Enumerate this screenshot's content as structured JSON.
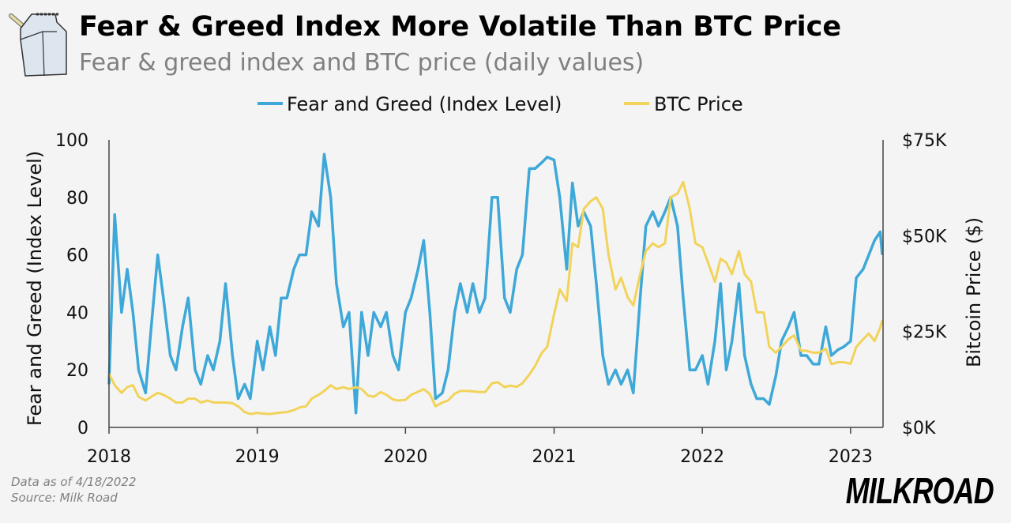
{
  "header": {
    "title": "Fear & Greed Index More Volatile Than BTC Price",
    "subtitle": "Fear & greed index and BTC price (daily values)",
    "logo_icon": "milk-carton-icon"
  },
  "footer": {
    "note": "Data as of 4/18/2022",
    "source": "Source: Milk Road",
    "brand_logo": "MILKROAD"
  },
  "colors": {
    "fear_greed": "#3ea8d8",
    "btc": "#f2d35a",
    "axis": "#444444",
    "background": "#f4f4f4"
  },
  "chart_data": {
    "type": "line",
    "legend_placement": "top-center",
    "grid": false,
    "xlabel": "",
    "ylabel": "Fear and Greed (Index Level)",
    "y2label": "Bitcoin Price ($)",
    "ylim": [
      0,
      100
    ],
    "y2lim": [
      0,
      75
    ],
    "y2_unit": "$K",
    "yticks": [
      "0",
      "20",
      "40",
      "60",
      "80",
      "100"
    ],
    "y2ticks": [
      "$0K",
      "$25K",
      "$50K",
      "$75K"
    ],
    "xticks": [
      "2018",
      "2019",
      "2020",
      "2021",
      "2022",
      "2023"
    ],
    "xlim": [
      "2018-01-01",
      "2023-03-22"
    ],
    "dates": [
      "2018-01-01",
      "2018-01-15",
      "2018-02-01",
      "2018-02-15",
      "2018-03-01",
      "2018-03-15",
      "2018-04-01",
      "2018-04-15",
      "2018-05-01",
      "2018-05-15",
      "2018-06-01",
      "2018-06-15",
      "2018-07-01",
      "2018-07-15",
      "2018-08-01",
      "2018-08-15",
      "2018-09-01",
      "2018-09-15",
      "2018-10-01",
      "2018-10-15",
      "2018-11-01",
      "2018-11-15",
      "2018-12-01",
      "2018-12-15",
      "2019-01-01",
      "2019-01-15",
      "2019-02-01",
      "2019-02-15",
      "2019-03-01",
      "2019-03-15",
      "2019-04-01",
      "2019-04-15",
      "2019-05-01",
      "2019-05-15",
      "2019-06-01",
      "2019-06-15",
      "2019-07-01",
      "2019-07-15",
      "2019-08-01",
      "2019-08-15",
      "2019-09-01",
      "2019-09-15",
      "2019-10-01",
      "2019-10-15",
      "2019-11-01",
      "2019-11-15",
      "2019-12-01",
      "2019-12-15",
      "2020-01-01",
      "2020-01-15",
      "2020-02-01",
      "2020-02-15",
      "2020-03-01",
      "2020-03-15",
      "2020-04-01",
      "2020-04-15",
      "2020-05-01",
      "2020-05-15",
      "2020-06-01",
      "2020-06-15",
      "2020-07-01",
      "2020-07-15",
      "2020-08-01",
      "2020-08-15",
      "2020-09-01",
      "2020-09-15",
      "2020-10-01",
      "2020-10-15",
      "2020-11-01",
      "2020-11-15",
      "2020-12-01",
      "2020-12-15",
      "2021-01-01",
      "2021-01-15",
      "2021-02-01",
      "2021-02-15",
      "2021-03-01",
      "2021-03-15",
      "2021-04-01",
      "2021-04-15",
      "2021-05-01",
      "2021-05-15",
      "2021-06-01",
      "2021-06-15",
      "2021-07-01",
      "2021-07-15",
      "2021-08-01",
      "2021-08-15",
      "2021-09-01",
      "2021-09-15",
      "2021-10-01",
      "2021-10-15",
      "2021-11-01",
      "2021-11-15",
      "2021-12-01",
      "2021-12-15",
      "2022-01-01",
      "2022-01-15",
      "2022-02-01",
      "2022-02-15",
      "2022-03-01",
      "2022-03-15",
      "2022-04-01",
      "2022-04-15",
      "2022-05-01",
      "2022-05-15",
      "2022-06-01",
      "2022-06-15",
      "2022-07-01",
      "2022-07-15",
      "2022-08-01",
      "2022-08-15",
      "2022-09-01",
      "2022-09-15",
      "2022-10-01",
      "2022-10-15",
      "2022-11-01",
      "2022-11-15",
      "2022-12-01",
      "2022-12-15",
      "2023-01-01",
      "2023-01-15",
      "2023-02-01",
      "2023-02-15",
      "2023-03-01",
      "2023-03-15",
      "2023-03-20"
    ],
    "series": [
      {
        "name": "Fear and Greed (Index Level)",
        "axis": "left",
        "values": [
          15,
          74,
          40,
          55,
          40,
          20,
          12,
          35,
          60,
          45,
          25,
          20,
          35,
          45,
          20,
          15,
          25,
          20,
          30,
          50,
          25,
          10,
          15,
          10,
          30,
          20,
          35,
          25,
          45,
          45,
          55,
          60,
          60,
          75,
          70,
          95,
          80,
          50,
          35,
          40,
          5,
          40,
          25,
          40,
          35,
          40,
          25,
          20,
          40,
          45,
          55,
          65,
          40,
          10,
          12,
          20,
          40,
          50,
          40,
          50,
          40,
          45,
          80,
          80,
          45,
          40,
          55,
          60,
          90,
          90,
          92,
          94,
          93,
          80,
          55,
          85,
          70,
          75,
          70,
          50,
          25,
          15,
          20,
          15,
          20,
          12,
          45,
          70,
          75,
          70,
          75,
          80,
          70,
          45,
          20,
          20,
          25,
          15,
          30,
          50,
          20,
          30,
          50,
          25,
          15,
          10,
          10,
          8,
          18,
          30,
          35,
          40,
          25,
          25,
          22,
          22,
          35,
          25,
          27,
          28,
          30,
          52,
          55,
          60,
          65,
          68,
          60
        ]
      },
      {
        "name": "BTC Price",
        "axis": "right",
        "values": [
          14,
          11,
          9,
          10.5,
          11,
          8,
          7,
          8,
          9,
          8.5,
          7.5,
          6.5,
          6.5,
          7.5,
          7.5,
          6.5,
          7,
          6.5,
          6.5,
          6.5,
          6.3,
          5.5,
          4,
          3.5,
          3.8,
          3.6,
          3.5,
          3.7,
          3.9,
          4,
          4.5,
          5.2,
          5.5,
          7.5,
          8.5,
          9.5,
          11,
          10,
          10.5,
          10,
          10.5,
          10,
          8.3,
          8,
          9.2,
          8.5,
          7.3,
          7,
          7.2,
          8.5,
          9.3,
          10,
          8.7,
          5.5,
          6.5,
          7,
          8.8,
          9.5,
          9.5,
          9.4,
          9.2,
          9.2,
          11.5,
          11.8,
          10.5,
          10.9,
          10.6,
          11.5,
          13.8,
          16,
          19.3,
          21,
          29.5,
          36,
          33,
          48,
          47,
          57,
          59,
          60,
          57,
          45,
          36,
          39,
          34,
          31.8,
          40,
          46,
          48,
          47,
          48,
          60,
          61,
          64,
          57,
          48,
          47,
          43,
          38,
          44,
          43,
          40,
          46,
          40,
          38,
          30,
          30,
          21,
          19.5,
          21,
          23,
          24,
          20,
          20,
          19.5,
          19.5,
          20.5,
          16.5,
          17,
          17,
          16.6,
          21,
          23,
          24.5,
          22.5,
          26,
          28
        ]
      }
    ]
  }
}
